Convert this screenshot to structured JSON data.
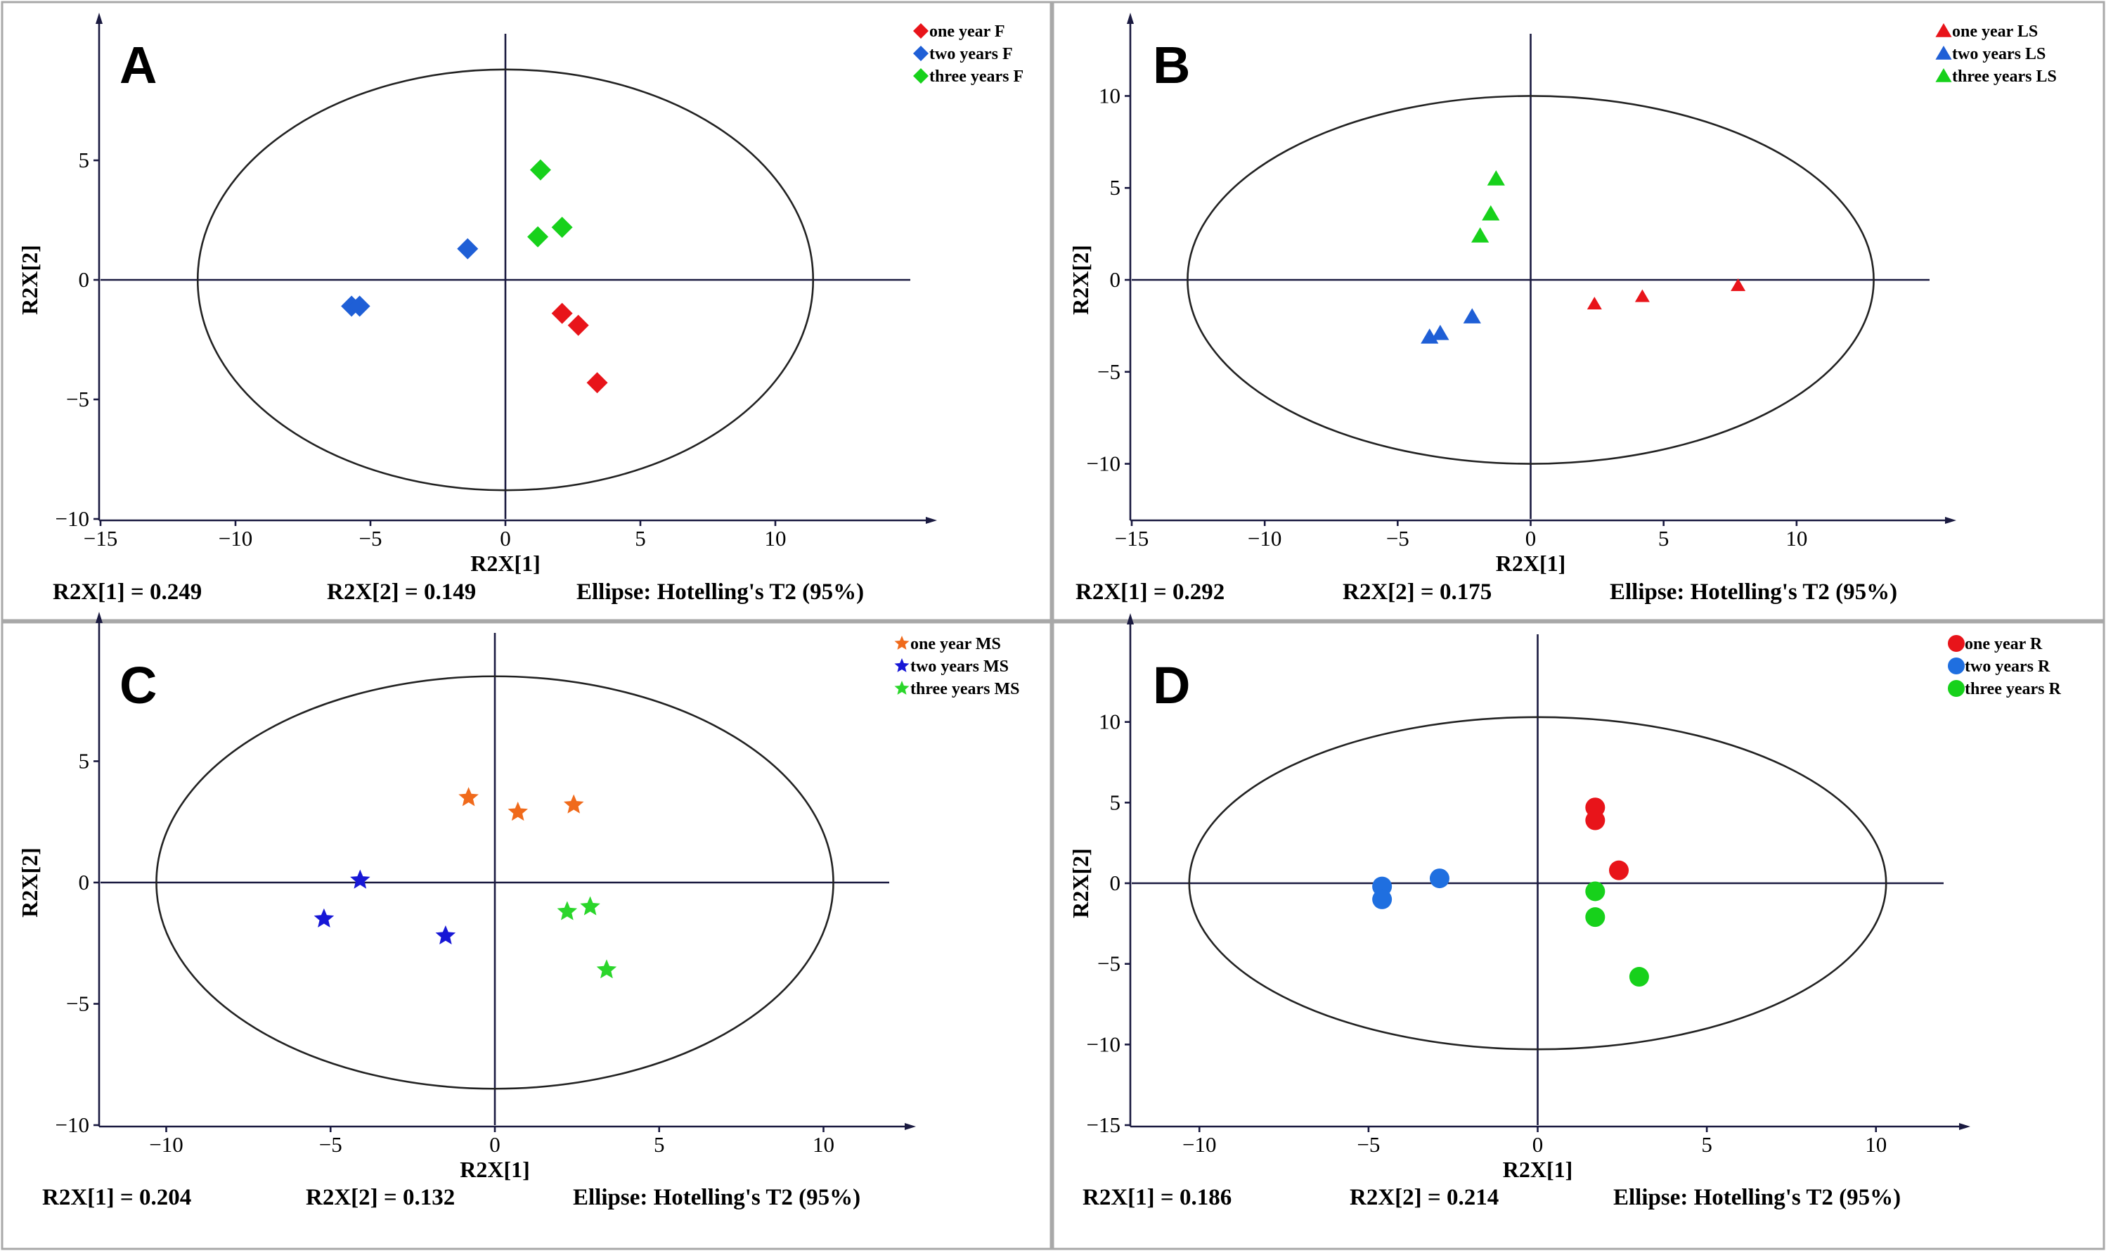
{
  "chart_data": [
    {
      "type": "scatter",
      "panel_letter": "A",
      "xlabel": "R2X[1]",
      "ylabel": "R2X[2]",
      "xlim": [
        -15,
        15
      ],
      "ylim": [
        -10,
        10
      ],
      "xticks": [
        -15,
        -10,
        -5,
        0,
        5,
        10
      ],
      "yticks": [
        -10,
        -5,
        0,
        5
      ],
      "ellipse": {
        "a": 11.4,
        "b": 8.8
      },
      "marker": "diamond",
      "legend_position": "top-right",
      "series": [
        {
          "name": "one year F",
          "color": "#e8141a",
          "points": [
            [
              2.1,
              -1.4
            ],
            [
              2.7,
              -1.9
            ],
            [
              3.4,
              -4.3
            ]
          ]
        },
        {
          "name": "two years F",
          "color": "#1f5fd6",
          "points": [
            [
              -1.4,
              1.3
            ],
            [
              -5.7,
              -1.1
            ],
            [
              -5.4,
              -1.1
            ]
          ]
        },
        {
          "name": "three years F",
          "color": "#17d11b",
          "points": [
            [
              1.3,
              4.6
            ],
            [
              2.1,
              2.2
            ],
            [
              1.2,
              1.8
            ]
          ]
        }
      ],
      "footer": [
        "R2X[1] = 0.249",
        "R2X[2] = 0.149",
        "Ellipse: Hotelling's T2 (95%)"
      ]
    },
    {
      "type": "scatter",
      "panel_letter": "B",
      "xlabel": "R2X[1]",
      "ylabel": "R2X[2]",
      "xlim": [
        -15,
        15
      ],
      "ylim": [
        -13,
        13
      ],
      "xticks": [
        -15,
        -10,
        -5,
        0,
        5,
        10
      ],
      "yticks": [
        -10,
        -5,
        0,
        5,
        10
      ],
      "ellipse": {
        "a": 12.9,
        "b": 10
      },
      "marker": "triangle",
      "legend_position": "top-right",
      "series": [
        {
          "name": "one year LS",
          "color": "#e8141a",
          "points": [
            [
              2.4,
              -1.3
            ],
            [
              4.2,
              -0.9
            ],
            [
              7.8,
              -0.3
            ]
          ]
        },
        {
          "name": "two years LS",
          "color": "#1f5fd6",
          "points": [
            [
              -2.2,
              -2.0
            ],
            [
              -3.4,
              -2.9
            ],
            [
              -3.8,
              -3.1
            ]
          ]
        },
        {
          "name": "three years LS",
          "color": "#17d11b",
          "points": [
            [
              -1.3,
              5.5
            ],
            [
              -1.5,
              3.6
            ],
            [
              -1.9,
              2.4
            ]
          ]
        }
      ],
      "footer": [
        "R2X[1] = 0.292",
        "R2X[2] = 0.175",
        "Ellipse: Hotelling's T2 (95%)"
      ]
    },
    {
      "type": "scatter",
      "panel_letter": "C",
      "xlabel": "R2X[1]",
      "ylabel": "R2X[2]",
      "xlim": [
        -12,
        12
      ],
      "ylim": [
        -10,
        10
      ],
      "xticks": [
        -10,
        -5,
        0,
        5,
        10
      ],
      "yticks": [
        -10,
        -5,
        0,
        5
      ],
      "ellipse": {
        "a": 10.3,
        "b": 8.5
      },
      "marker": "star",
      "legend_position": "top-right",
      "series": [
        {
          "name": "one year MS",
          "color": "#f06a1b",
          "points": [
            [
              -0.8,
              3.5
            ],
            [
              0.7,
              2.9
            ],
            [
              2.4,
              3.2
            ]
          ]
        },
        {
          "name": "two years MS",
          "color": "#1717d6",
          "points": [
            [
              -4.1,
              0.1
            ],
            [
              -5.2,
              -1.5
            ],
            [
              -1.5,
              -2.2
            ]
          ]
        },
        {
          "name": "three years MS",
          "color": "#2bd62b",
          "points": [
            [
              2.2,
              -1.2
            ],
            [
              2.9,
              -1.0
            ],
            [
              3.4,
              -3.6
            ]
          ]
        }
      ],
      "footer": [
        "R2X[1] = 0.204",
        "R2X[2] = 0.132",
        "Ellipse: Hotelling's T2 (95%)"
      ]
    },
    {
      "type": "scatter",
      "panel_letter": "D",
      "xlabel": "R2X[1]",
      "ylabel": "R2X[2]",
      "xlim": [
        -12,
        12
      ],
      "ylim": [
        -15,
        15
      ],
      "xticks": [
        -10,
        -5,
        0,
        5,
        10
      ],
      "yticks": [
        -15,
        -10,
        -5,
        0,
        5,
        10
      ],
      "ellipse": {
        "a": 10.3,
        "b": 10.3
      },
      "marker": "circle",
      "legend_position": "top-right",
      "series": [
        {
          "name": "one year R",
          "color": "#e8141a",
          "points": [
            [
              1.7,
              4.7
            ],
            [
              1.7,
              3.9
            ],
            [
              2.4,
              0.8
            ]
          ]
        },
        {
          "name": "two years R",
          "color": "#1f6fe0",
          "points": [
            [
              -4.6,
              -0.2
            ],
            [
              -4.6,
              -1.0
            ],
            [
              -2.9,
              0.3
            ]
          ]
        },
        {
          "name": "three years R",
          "color": "#17d11b",
          "points": [
            [
              1.7,
              -0.5
            ],
            [
              1.7,
              -2.1
            ],
            [
              3.0,
              -5.8
            ]
          ]
        }
      ],
      "footer": [
        "R2X[1] = 0.186",
        "R2X[2] = 0.214",
        "Ellipse: Hotelling's T2 (95%)"
      ]
    }
  ]
}
